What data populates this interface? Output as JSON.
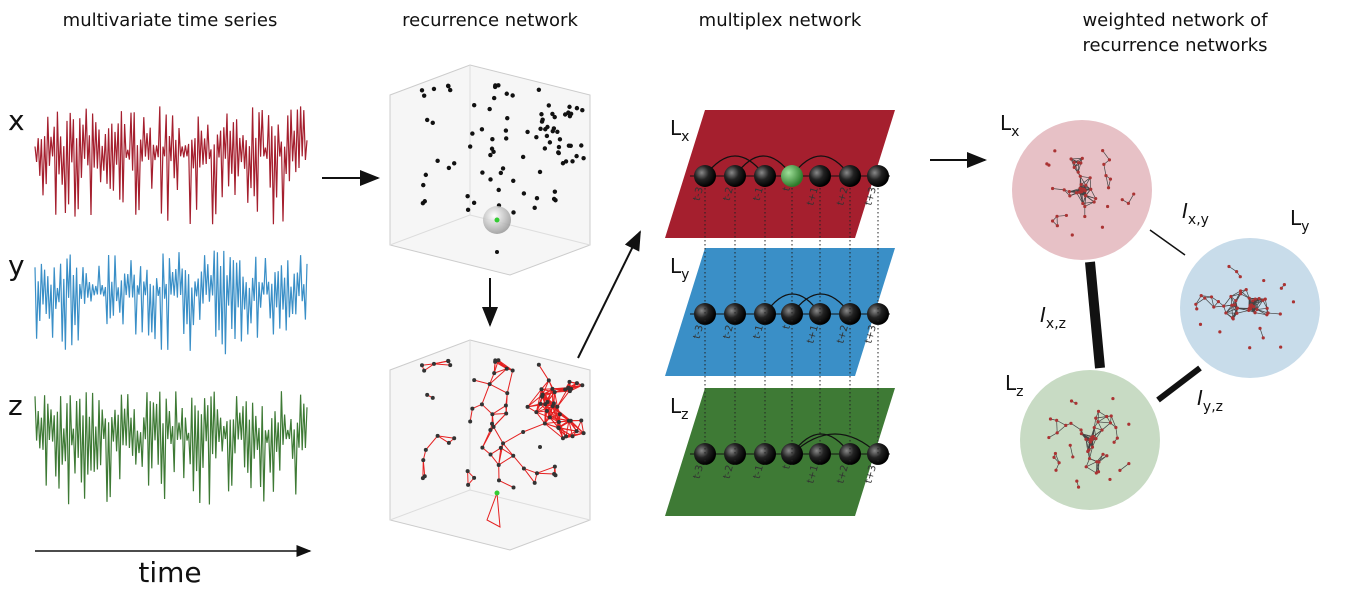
{
  "panels": [
    {
      "title": [
        "multivariate time series"
      ]
    },
    {
      "title": [
        "recurrence network"
      ]
    },
    {
      "title": [
        "multiplex network"
      ]
    },
    {
      "title": [
        "weighted network of",
        "recurrence networks"
      ]
    }
  ],
  "time_series": {
    "labels": [
      "x",
      "y",
      "z"
    ],
    "axis_label": "time"
  },
  "multiplex": {
    "layers": [
      {
        "main": "L",
        "sub": "x"
      },
      {
        "main": "L",
        "sub": "y"
      },
      {
        "main": "L",
        "sub": "z"
      }
    ],
    "node_labels": [
      "t-3",
      "t-2",
      "t-1",
      "t",
      "t+1",
      "t+2",
      "t+3"
    ]
  },
  "weighted": {
    "layers": [
      {
        "main": "L",
        "sub": "x"
      },
      {
        "main": "L",
        "sub": "y"
      },
      {
        "main": "L",
        "sub": "z"
      }
    ],
    "links": [
      {
        "main": "I",
        "sub": "x,y"
      },
      {
        "main": "I",
        "sub": "x,z"
      },
      {
        "main": "I",
        "sub": "y,z"
      }
    ]
  }
}
